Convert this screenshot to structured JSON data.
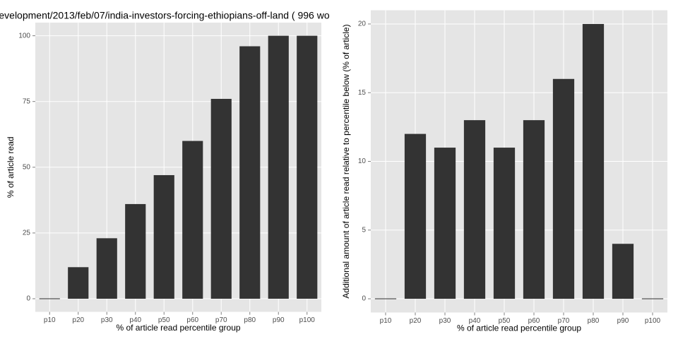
{
  "chart_data": [
    {
      "type": "bar",
      "title": "evelopment/2013/feb/07/india-investors-forcing-ethiopians-off-land ( 996 wo",
      "x_label": "% of article read percentile group",
      "y_label": "% of article read",
      "categories": [
        "p10",
        "p20",
        "p30",
        "p40",
        "p50",
        "p60",
        "p70",
        "p80",
        "p90",
        "p100"
      ],
      "values": [
        0,
        12,
        23,
        36,
        47,
        60,
        76,
        96,
        100,
        100
      ],
      "color": "#333333",
      "ylim": [
        -5,
        105
      ],
      "yticks": [
        0,
        25,
        50,
        75,
        100
      ],
      "grid": true
    },
    {
      "type": "bar",
      "x_label": "% of article read percentile group",
      "y_label": "Additional amount of article read relative to percentile below (% of article)",
      "categories": [
        "p10",
        "p20",
        "p30",
        "p40",
        "p50",
        "p60",
        "p70",
        "p80",
        "p90",
        "p100"
      ],
      "values": [
        0,
        12,
        11,
        13,
        11,
        13,
        16,
        20,
        4,
        0
      ],
      "color": "#333333",
      "ylim": [
        -1,
        21
      ],
      "yticks": [
        0,
        5,
        10,
        15,
        20
      ],
      "grid": true
    }
  ]
}
